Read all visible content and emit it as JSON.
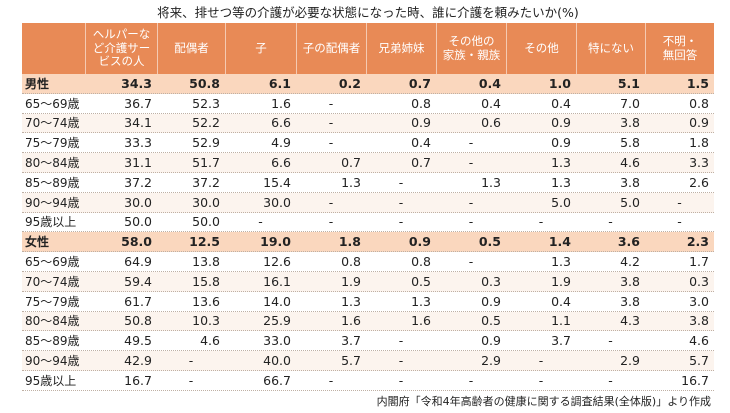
{
  "colors": {
    "header_bg": "#e88a56",
    "header_text": "#ffffff",
    "group_row_bg": "#fad7be",
    "stripe_bg": "#fcf4ee",
    "text": "#222222"
  },
  "chart_data": {
    "type": "table",
    "title": "将来、排せつ等の介護が必要な状態になった時、誰に介護を頼みたいか(%)",
    "columns": [
      "ヘルパーな\nど介護サー\nビスの人",
      "配偶者",
      "子",
      "子の配偶者",
      "兄弟姉妹",
      "その他の\n家族・親族",
      "その他",
      "特にない",
      "不明・\n無回答"
    ],
    "groups": [
      {
        "label": "男性",
        "values": [
          "34.3",
          "50.8",
          "6.1",
          "0.2",
          "0.7",
          "0.4",
          "1.0",
          "5.1",
          "1.5"
        ],
        "rows": [
          {
            "label": "65～69歳",
            "values": [
              "36.7",
              "52.3",
              "1.6",
              "-",
              "0.8",
              "0.4",
              "0.4",
              "7.0",
              "0.8"
            ]
          },
          {
            "label": "70～74歳",
            "values": [
              "34.1",
              "52.2",
              "6.6",
              "-",
              "0.9",
              "0.6",
              "0.9",
              "3.8",
              "0.9"
            ]
          },
          {
            "label": "75～79歳",
            "values": [
              "33.3",
              "52.9",
              "4.9",
              "-",
              "0.4",
              "-",
              "0.9",
              "5.8",
              "1.8"
            ]
          },
          {
            "label": "80～84歳",
            "values": [
              "31.1",
              "51.7",
              "6.6",
              "0.7",
              "0.7",
              "-",
              "1.3",
              "4.6",
              "3.3"
            ]
          },
          {
            "label": "85～89歳",
            "values": [
              "37.2",
              "37.2",
              "15.4",
              "1.3",
              "-",
              "1.3",
              "1.3",
              "3.8",
              "2.6"
            ]
          },
          {
            "label": "90～94歳",
            "values": [
              "30.0",
              "30.0",
              "30.0",
              "-",
              "-",
              "-",
              "5.0",
              "5.0",
              "-"
            ]
          },
          {
            "label": "95歳以上",
            "values": [
              "50.0",
              "50.0",
              "-",
              "-",
              "-",
              "-",
              "-",
              "-",
              "-"
            ]
          }
        ]
      },
      {
        "label": "女性",
        "values": [
          "58.0",
          "12.5",
          "19.0",
          "1.8",
          "0.9",
          "0.5",
          "1.4",
          "3.6",
          "2.3"
        ],
        "rows": [
          {
            "label": "65～69歳",
            "values": [
              "64.9",
              "13.8",
              "12.6",
              "0.8",
              "0.8",
              "-",
              "1.3",
              "4.2",
              "1.7"
            ]
          },
          {
            "label": "70～74歳",
            "values": [
              "59.4",
              "15.8",
              "16.1",
              "1.9",
              "0.5",
              "0.3",
              "1.9",
              "3.8",
              "0.3"
            ]
          },
          {
            "label": "75～79歳",
            "values": [
              "61.7",
              "13.6",
              "14.0",
              "1.3",
              "1.3",
              "0.9",
              "0.4",
              "3.8",
              "3.0"
            ]
          },
          {
            "label": "80～84歳",
            "values": [
              "50.8",
              "10.3",
              "25.9",
              "1.6",
              "1.6",
              "0.5",
              "1.1",
              "4.3",
              "3.8"
            ]
          },
          {
            "label": "85～89歳",
            "values": [
              "49.5",
              "4.6",
              "33.0",
              "3.7",
              "-",
              "0.9",
              "3.7",
              "-",
              "4.6"
            ]
          },
          {
            "label": "90～94歳",
            "values": [
              "42.9",
              "-",
              "40.0",
              "5.7",
              "-",
              "2.9",
              "-",
              "2.9",
              "5.7"
            ]
          },
          {
            "label": "95歳以上",
            "values": [
              "16.7",
              "-",
              "66.7",
              "-",
              "-",
              "-",
              "-",
              "-",
              "16.7"
            ]
          }
        ]
      }
    ]
  },
  "footer": {
    "source": "内閣府「令和4年高齢者の健康に関する調査結果(全体版)」より作成"
  }
}
